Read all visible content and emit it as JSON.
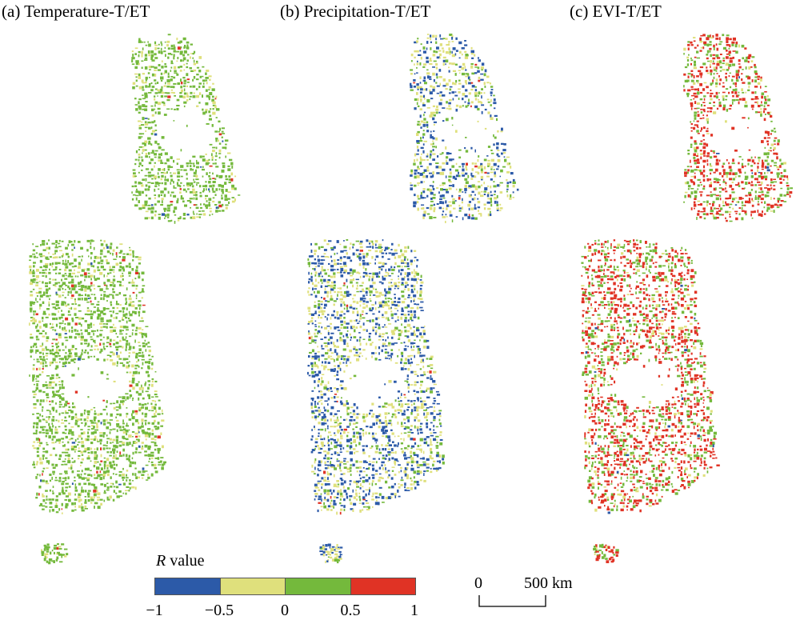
{
  "panels": [
    {
      "title": "(a) Temperature-T/ET",
      "colors": [
        "#74b93c",
        "#74b93c",
        "#dfe07c",
        "#e03325",
        "#2c5aa8"
      ],
      "weights": [
        0.55,
        0.25,
        0.17,
        0.02,
        0.01
      ]
    },
    {
      "title": "(b) Precipitation-T/ET",
      "colors": [
        "#2c5aa8",
        "#dfe07c",
        "#74b93c",
        "#e03325"
      ],
      "weights": [
        0.45,
        0.35,
        0.19,
        0.01
      ]
    },
    {
      "title": "(c) EVI-T/ET",
      "colors": [
        "#e03325",
        "#74b93c",
        "#dfe07c",
        "#2c5aa8"
      ],
      "weights": [
        0.55,
        0.35,
        0.09,
        0.01
      ]
    }
  ],
  "legend": {
    "title_italic": "R",
    "title_rest": " value",
    "classes": [
      {
        "color": "#2c5aa8"
      },
      {
        "color": "#dfe07c"
      },
      {
        "color": "#74b93c"
      },
      {
        "color": "#e03325"
      }
    ],
    "ticks": [
      "−1",
      "−0.5",
      "0",
      "0.5",
      "1"
    ]
  },
  "scale": {
    "left": "0",
    "right": "500 km"
  }
}
